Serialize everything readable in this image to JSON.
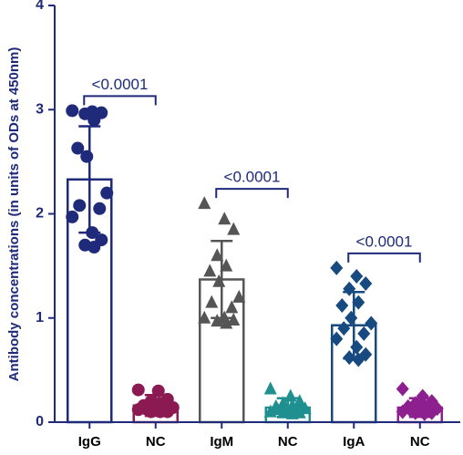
{
  "chart_data": {
    "type": "bar",
    "y_label": "Antibody concentrations (in units of ODs at 450nm)",
    "categories": [
      "IgG",
      "NC",
      "IgM",
      "NC",
      "IgA",
      "NC"
    ],
    "values": [
      2.33,
      0.16,
      1.37,
      0.14,
      0.93,
      0.14
    ],
    "errors": [
      0.51,
      0.1,
      0.37,
      0.09,
      0.32,
      0.09
    ],
    "colors": [
      "#1f2a7a",
      "#8b1a52",
      "#555555",
      "#1f8f8f",
      "#174a80",
      "#8e1f8e"
    ],
    "markers": [
      "circle",
      "circle",
      "triangle",
      "triangle",
      "diamond",
      "diamond"
    ],
    "points": [
      [
        2.99,
        2.98,
        2.97,
        2.96,
        2.9,
        2.63,
        2.55,
        2.2,
        2.08,
        2.05,
        1.97,
        1.82,
        1.75,
        1.7,
        1.68
      ],
      [
        0.31,
        0.3,
        0.22,
        0.2,
        0.18,
        0.16,
        0.15,
        0.14,
        0.13,
        0.12,
        0.12,
        0.11,
        0.1,
        0.1,
        0.1
      ],
      [
        2.1,
        1.95,
        1.85,
        1.6,
        1.5,
        1.45,
        1.35,
        1.2,
        1.15,
        1.1,
        1.0,
        1.0,
        0.98,
        0.97,
        0.95
      ],
      [
        0.32,
        0.25,
        0.2,
        0.18,
        0.16,
        0.15,
        0.14,
        0.13,
        0.12,
        0.11,
        0.1,
        0.1,
        0.09,
        0.09,
        0.08
      ],
      [
        1.48,
        1.4,
        1.33,
        1.28,
        1.15,
        1.12,
        1.0,
        0.95,
        0.9,
        0.85,
        0.8,
        0.72,
        0.65,
        0.62,
        0.6
      ],
      [
        0.32,
        0.25,
        0.2,
        0.18,
        0.16,
        0.15,
        0.14,
        0.13,
        0.12,
        0.11,
        0.1,
        0.1,
        0.09,
        0.09,
        0.08
      ]
    ],
    "annotations": [
      {
        "text": "<0.0001",
        "from": 0,
        "to": 1
      },
      {
        "text": "<0.0001",
        "from": 2,
        "to": 3
      },
      {
        "text": "<0.0001",
        "from": 4,
        "to": 5
      }
    ],
    "ylim": [
      0,
      4
    ],
    "yticks": [
      0,
      1,
      2,
      3,
      4
    ],
    "axis_color": "#1f2a7a"
  }
}
